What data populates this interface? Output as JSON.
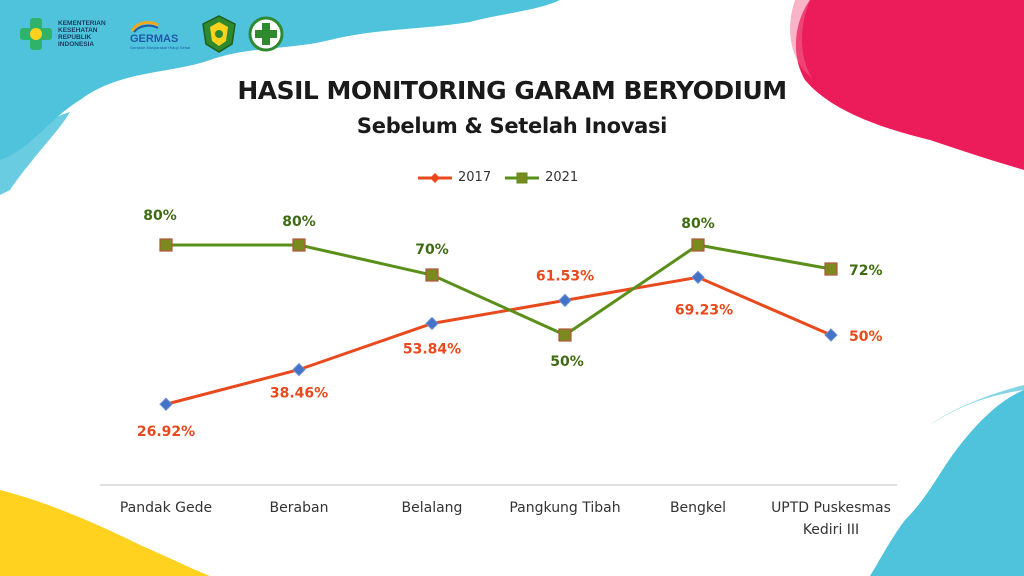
{
  "header": {
    "kemenkes_text": "KEMENTERIAN KESEHATAN REPUBLIK INDONESIA",
    "germas_title": "GERMAS",
    "germas_subtitle": "Gerakan Masyarakat Hidup Sehat"
  },
  "colors": {
    "series_2017": "#e8491d",
    "series_2021": "#5a8f1a",
    "marker_2017": "#4472c4",
    "marker_2021": "#7a8a1e",
    "label_2017": "#e8491d",
    "label_2021": "#3f6b12",
    "deco_cyan": "#4fc3dc",
    "deco_pink": "#ec1c5a",
    "deco_yellow": "#ffd21f"
  },
  "chart_data": {
    "type": "line",
    "title": "HASIL MONITORING GARAM BERYODIUM",
    "subtitle": "Sebelum & Setelah Inovasi",
    "xlabel": "",
    "ylabel": "",
    "categories": [
      "Pandak Gede",
      "Beraban",
      "Belalang",
      "Pangkung Tibah",
      "Bengkel",
      "UPTD Puskesmas Kediri III"
    ],
    "series": [
      {
        "name": "2017",
        "values": [
          26.92,
          38.46,
          53.84,
          61.53,
          69.23,
          50
        ],
        "labels": [
          "26.92%",
          "38.46%",
          "53.84%",
          "61.53%",
          "69.23%",
          "50%"
        ]
      },
      {
        "name": "2021",
        "values": [
          80,
          80,
          70,
          50,
          80,
          72
        ],
        "labels": [
          "80%",
          "80%",
          "70%",
          "50%",
          "80%",
          "72%"
        ]
      }
    ],
    "legend_position": "top",
    "grid": false,
    "ylim": [
      0,
      90
    ]
  }
}
